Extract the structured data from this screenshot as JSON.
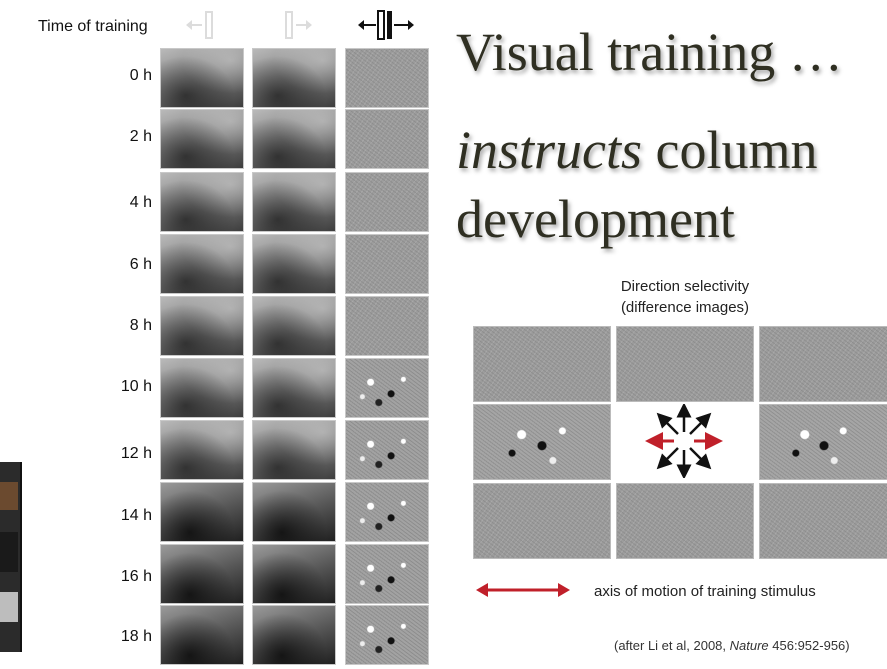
{
  "figure": {
    "time_header": "Time of training",
    "rows": [
      "0 h",
      "2 h",
      "4 h",
      "6 h",
      "8 h",
      "10 h",
      "12 h",
      "14 h",
      "16 h",
      "18 h"
    ]
  },
  "title": {
    "line1": "Visual training …",
    "line2_italic": "instructs",
    "line2_rest": " column",
    "line3": "development"
  },
  "direction_panel": {
    "caption_line1": "Direction selectivity",
    "caption_line2": "(difference images)"
  },
  "legend": {
    "text": "axis of motion of training stimulus",
    "arrow_color": "#c0202a"
  },
  "citation": {
    "prefix": "(after Li et al, 2008, ",
    "journal": "Nature",
    "suffix": " 456:952-956)"
  }
}
